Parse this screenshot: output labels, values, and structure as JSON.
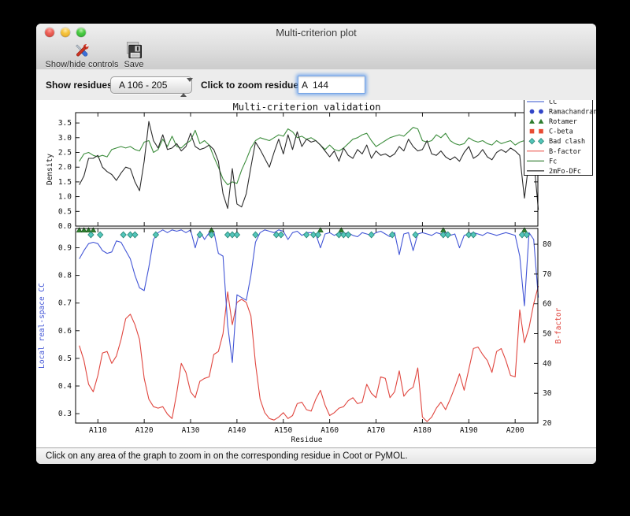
{
  "window": {
    "title": "Multi-criterion plot"
  },
  "toolbar": {
    "show_hide_label": "Show/hide controls",
    "save_label": "Save"
  },
  "controls": {
    "show_residues_label": "Show residues:",
    "show_residues_value": "A 106 - 205",
    "zoom_residue_label": "Click to zoom residue:",
    "zoom_residue_value": "A  144"
  },
  "status_bar": {
    "text": "Click on any area of the graph to zoom in on the corresponding residue in Coot or PyMOL."
  },
  "chart_data": {
    "type": "line",
    "title": "Multi-criterion validation",
    "xlabel": "Residue",
    "x_start": 106,
    "x_end": 205,
    "xlim": [
      105.2,
      204.9
    ],
    "x_tick_values": [
      110,
      120,
      130,
      140,
      150,
      160,
      170,
      180,
      190,
      200
    ],
    "x_tick_labels": [
      "A110",
      "A120",
      "A130",
      "A140",
      "A150",
      "A160",
      "A170",
      "A180",
      "A190",
      "A200"
    ],
    "top_plot": {
      "ylabel": "Density",
      "ylim": [
        0,
        3.85
      ],
      "yticks": [
        0.0,
        0.5,
        1.0,
        1.5,
        2.0,
        2.5,
        3.0,
        3.5
      ],
      "series": [
        {
          "name": "Fc",
          "color": "#3e8e3e",
          "values": [
            2.2,
            2.45,
            2.5,
            2.4,
            2.35,
            2.4,
            2.35,
            2.6,
            2.65,
            2.7,
            2.65,
            2.7,
            2.6,
            2.55,
            2.85,
            2.9,
            2.5,
            2.6,
            2.95,
            2.7,
            3.05,
            2.7,
            2.65,
            2.8,
            2.9,
            3.25,
            2.8,
            2.9,
            2.75,
            2.35,
            2.0,
            1.6,
            1.4,
            1.5,
            1.45,
            1.9,
            2.25,
            2.65,
            2.9,
            3.0,
            2.95,
            2.9,
            3.0,
            3.1,
            3.05,
            3.3,
            3.2,
            3.0,
            3.05,
            2.95,
            3.0,
            2.9,
            2.75,
            2.6,
            2.75,
            2.6,
            2.55,
            2.65,
            2.8,
            2.95,
            3.0,
            3.1,
            3.15,
            2.9,
            2.7,
            2.8,
            2.9,
            3.0,
            3.05,
            3.1,
            3.05,
            3.2,
            3.35,
            3.3,
            2.9,
            2.85,
            2.9,
            3.1,
            3.0,
            3.15,
            2.9,
            2.8,
            2.75,
            2.8,
            3.0,
            2.9,
            2.85,
            2.9,
            2.8,
            2.75,
            2.9,
            2.8,
            2.85,
            2.9,
            2.75,
            2.85,
            2.9,
            2.4,
            2.8,
            2.5
          ]
        },
        {
          "name": "2mFo-DFc",
          "color": "#2b2b2b",
          "values": [
            1.4,
            1.7,
            2.3,
            2.3,
            2.4,
            2.0,
            1.85,
            1.75,
            1.55,
            1.8,
            2.0,
            1.95,
            1.5,
            1.2,
            2.2,
            3.55,
            2.9,
            2.65,
            3.1,
            2.6,
            2.65,
            2.8,
            2.55,
            2.7,
            3.15,
            2.7,
            2.6,
            2.65,
            2.75,
            2.6,
            2.2,
            1.1,
            0.6,
            1.95,
            0.75,
            0.65,
            1.1,
            2.0,
            2.85,
            2.6,
            2.3,
            2.0,
            2.5,
            2.95,
            2.45,
            3.1,
            2.6,
            3.2,
            2.7,
            2.95,
            2.85,
            2.9,
            2.75,
            2.55,
            2.35,
            2.55,
            2.2,
            2.65,
            2.4,
            2.3,
            2.6,
            2.45,
            2.75,
            2.3,
            2.55,
            2.4,
            2.45,
            2.35,
            2.45,
            2.7,
            2.55,
            2.95,
            2.7,
            2.55,
            2.6,
            2.9,
            2.45,
            2.4,
            2.55,
            2.35,
            2.25,
            2.35,
            2.2,
            2.5,
            2.7,
            2.3,
            2.4,
            2.6,
            2.35,
            2.25,
            2.5,
            2.6,
            2.5,
            2.65,
            2.55,
            2.4,
            0.95,
            2.2,
            2.3,
            0.55
          ]
        }
      ]
    },
    "bottom_plot": {
      "ylabel_left": "Local real-space CC",
      "ylabel_left_color": "#4356d6",
      "ylim_left": [
        0.266,
        0.97
      ],
      "yticks_left": [
        0.3,
        0.4,
        0.5,
        0.6,
        0.7,
        0.8,
        0.9
      ],
      "ylabel_right": "B-factor",
      "ylabel_right_color": "#e0463f",
      "ylim_right": [
        20,
        85.3
      ],
      "yticks_right": [
        20,
        30,
        40,
        50,
        60,
        70,
        80
      ],
      "series": [
        {
          "name": "CC",
          "axis": "left",
          "color": "#4356d6",
          "values": [
            0.86,
            0.89,
            0.915,
            0.92,
            0.915,
            0.89,
            0.88,
            0.885,
            0.925,
            0.92,
            0.89,
            0.86,
            0.8,
            0.755,
            0.745,
            0.83,
            0.93,
            0.955,
            0.965,
            0.955,
            0.965,
            0.96,
            0.965,
            0.955,
            0.965,
            0.9,
            0.96,
            0.93,
            0.955,
            0.96,
            0.88,
            0.87,
            0.62,
            0.485,
            0.73,
            0.72,
            0.71,
            0.8,
            0.92,
            0.955,
            0.965,
            0.96,
            0.955,
            0.965,
            0.96,
            0.93,
            0.955,
            0.96,
            0.945,
            0.955,
            0.955,
            0.95,
            0.9,
            0.95,
            0.955,
            0.945,
            0.955,
            0.95,
            0.955,
            0.945,
            0.94,
            0.955,
            0.95,
            0.945,
            0.955,
            0.96,
            0.95,
            0.94,
            0.955,
            0.875,
            0.95,
            0.955,
            0.89,
            0.95,
            0.955,
            0.95,
            0.945,
            0.955,
            0.95,
            0.955,
            0.945,
            0.95,
            0.9,
            0.945,
            0.95,
            0.955,
            0.95,
            0.945,
            0.955,
            0.95,
            0.945,
            0.95,
            0.955,
            0.95,
            0.945,
            0.87,
            0.69,
            0.955,
            0.93,
            0.72
          ]
        },
        {
          "name": "B-factor",
          "axis": "right",
          "color": "#e0463f",
          "values": [
            46,
            41,
            33,
            30.5,
            36,
            43.5,
            44,
            40,
            42.5,
            48,
            55,
            56.5,
            53,
            48,
            35,
            28,
            25.5,
            25,
            25.5,
            23,
            21.5,
            30,
            40,
            37,
            30.5,
            28.5,
            34,
            35,
            35.5,
            43,
            44,
            50,
            64,
            53,
            60.5,
            61.5,
            60.5,
            56,
            40,
            28,
            23.5,
            21.5,
            21,
            22,
            23.5,
            21.5,
            22.5,
            26.5,
            27,
            24.5,
            24,
            28,
            31,
            26,
            22.5,
            23.5,
            25,
            25.5,
            27.5,
            28.5,
            26.5,
            27,
            33,
            30,
            28.5,
            35.5,
            35,
            28.5,
            30.5,
            37.5,
            29,
            31,
            32,
            38.5,
            22,
            20.5,
            22,
            25,
            27,
            24.5,
            28,
            32,
            36.5,
            31,
            38,
            45,
            45.5,
            43,
            41,
            37,
            44,
            45,
            41,
            36,
            35.5,
            58,
            47,
            52,
            60,
            66
          ]
        }
      ],
      "markers": {
        "rotamer": {
          "shape": "triangle",
          "color": "#2e7d2e",
          "residues": [
            106,
            107,
            108,
            109,
            134.5,
            158,
            162.5,
            184.5,
            202
          ]
        },
        "bad_clash": {
          "shape": "diamond",
          "color": "#53c6bb",
          "edge_color": "#2e8b7a",
          "residues": [
            108.5,
            110.5,
            115.5,
            117,
            118,
            122.5,
            132,
            134.5,
            138,
            139,
            140,
            144,
            148.5,
            149.5,
            155,
            156.5,
            157.5,
            162,
            163,
            164,
            169,
            173.5,
            178.5,
            184.5,
            185.5,
            190,
            191,
            201.5,
            202.5
          ]
        }
      }
    },
    "legend": [
      {
        "label": "CC",
        "glyph": "line",
        "color": "#5b74d8"
      },
      {
        "label": "Ramachandran",
        "glyph": "circles",
        "color": "#3246c8"
      },
      {
        "label": "Rotamer",
        "glyph": "triangles",
        "color": "#2e7d2e"
      },
      {
        "label": "C-beta",
        "glyph": "squares",
        "color": "#e84b33"
      },
      {
        "label": "Bad clash",
        "glyph": "diamonds",
        "color": "#53c6bb",
        "edge_color": "#2e8b7a"
      },
      {
        "label": "B-factor",
        "glyph": "line",
        "color": "#ef6e66"
      },
      {
        "label": "Fc",
        "glyph": "line",
        "color": "#2d7a2d"
      },
      {
        "label": "2mFo-DFc",
        "glyph": "line",
        "color": "#2b2b2b"
      }
    ]
  }
}
